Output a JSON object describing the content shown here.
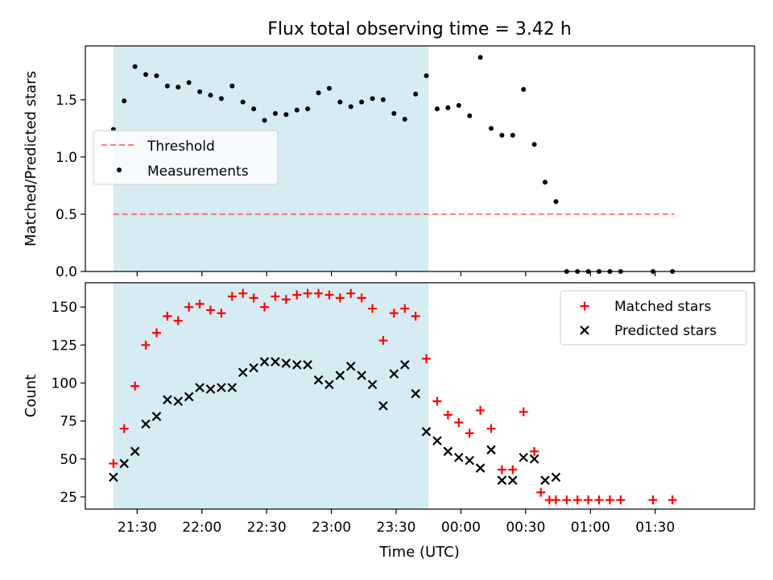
{
  "title": "Flux total observing time = 3.42 h",
  "xlabel": "Time (UTC)",
  "x_tick_labels": [
    "21:30",
    "22:00",
    "22:30",
    "23:00",
    "23:30",
    "00:00",
    "00:30",
    "01:00",
    "01:30"
  ],
  "colors": {
    "shade": "#add8e6",
    "threshold": "#ff0000",
    "matched": "#ff0000",
    "predicted": "#000000",
    "measurements": "#000000"
  },
  "chart_data": [
    {
      "type": "scatter",
      "panel": "top",
      "ylabel": "Matched/Predicted stars",
      "ylim": [
        0,
        1.97
      ],
      "y_ticks": [
        0.0,
        0.5,
        1.0,
        1.5
      ],
      "y_tick_labels": [
        "0.0",
        "0.5",
        "1.0",
        "1.5"
      ],
      "xlim_minutes_from_2130": [
        -24,
        286
      ],
      "shaded_interval": [
        "21:19",
        "23:45"
      ],
      "threshold": {
        "name": "Threshold",
        "value": 0.5,
        "x_start": "21:19",
        "x_end": "01:39",
        "style": "dashed"
      },
      "legend": {
        "position": "center-left",
        "entries": [
          "Threshold",
          "Measurements"
        ]
      },
      "series": [
        {
          "name": "Measurements",
          "marker": "dot",
          "x": [
            "21:19",
            "21:24",
            "21:29",
            "21:34",
            "21:39",
            "21:44",
            "21:49",
            "21:54",
            "21:59",
            "22:04",
            "22:09",
            "22:14",
            "22:19",
            "22:24",
            "22:29",
            "22:34",
            "22:39",
            "22:44",
            "22:49",
            "22:54",
            "22:59",
            "23:04",
            "23:09",
            "23:14",
            "23:19",
            "23:24",
            "23:29",
            "23:34",
            "23:39",
            "23:44",
            "23:49",
            "23:54",
            "23:59",
            "00:04",
            "00:09",
            "00:14",
            "00:19",
            "00:24",
            "00:29",
            "00:34",
            "00:39",
            "00:44",
            "00:49",
            "00:54",
            "00:59",
            "01:04",
            "01:09",
            "01:14",
            "01:29",
            "01:38"
          ],
          "y": [
            1.24,
            1.49,
            1.79,
            1.72,
            1.71,
            1.62,
            1.61,
            1.65,
            1.57,
            1.54,
            1.51,
            1.62,
            1.48,
            1.42,
            1.32,
            1.38,
            1.37,
            1.41,
            1.42,
            1.56,
            1.6,
            1.48,
            1.44,
            1.48,
            1.51,
            1.5,
            1.38,
            1.33,
            1.55,
            1.71,
            1.42,
            1.43,
            1.45,
            1.36,
            1.87,
            1.25,
            1.19,
            1.19,
            1.59,
            1.11,
            0.78,
            0.61,
            0,
            0,
            0,
            0,
            0,
            0,
            0,
            0
          ]
        }
      ]
    },
    {
      "type": "scatter",
      "panel": "bottom",
      "ylabel": "Count",
      "ylim": [
        17,
        166
      ],
      "y_ticks": [
        25,
        50,
        75,
        100,
        125,
        150
      ],
      "y_tick_labels": [
        "25",
        "50",
        "75",
        "100",
        "125",
        "150"
      ],
      "xlim_minutes_from_2130": [
        -24,
        286
      ],
      "shaded_interval": [
        "21:19",
        "23:45"
      ],
      "legend": {
        "position": "top-right",
        "entries": [
          "Matched stars",
          "Predicted stars"
        ]
      },
      "series": [
        {
          "name": "Matched stars",
          "marker": "plus",
          "x": [
            "21:19",
            "21:24",
            "21:29",
            "21:34",
            "21:39",
            "21:44",
            "21:49",
            "21:54",
            "21:59",
            "22:04",
            "22:09",
            "22:14",
            "22:19",
            "22:24",
            "22:29",
            "22:34",
            "22:39",
            "22:44",
            "22:49",
            "22:54",
            "22:59",
            "23:04",
            "23:09",
            "23:14",
            "23:19",
            "23:24",
            "23:29",
            "23:34",
            "23:39",
            "23:44",
            "23:49",
            "23:54",
            "23:59",
            "00:04",
            "00:09",
            "00:14",
            "00:19",
            "00:24",
            "00:29",
            "00:34",
            "00:37",
            "00:41",
            "00:44",
            "00:49",
            "00:54",
            "00:59",
            "01:04",
            "01:09",
            "01:14",
            "01:29",
            "01:38"
          ],
          "y": [
            47,
            70,
            98,
            125,
            133,
            144,
            141,
            150,
            152,
            148,
            146,
            157,
            159,
            156,
            150,
            157,
            155,
            158,
            159,
            159,
            158,
            156,
            159,
            156,
            149,
            128,
            146,
            149,
            144,
            116,
            88,
            79,
            74,
            67,
            82,
            70,
            43,
            43,
            81,
            55,
            28,
            23,
            23,
            23,
            23,
            23,
            23,
            23,
            23,
            23,
            23
          ]
        },
        {
          "name": "Predicted stars",
          "marker": "x",
          "x": [
            "21:19",
            "21:24",
            "21:29",
            "21:34",
            "21:39",
            "21:44",
            "21:49",
            "21:54",
            "21:59",
            "22:04",
            "22:09",
            "22:14",
            "22:19",
            "22:24",
            "22:29",
            "22:34",
            "22:39",
            "22:44",
            "22:49",
            "22:54",
            "22:59",
            "23:04",
            "23:09",
            "23:14",
            "23:19",
            "23:24",
            "23:29",
            "23:34",
            "23:39",
            "23:44",
            "23:49",
            "23:54",
            "23:59",
            "00:04",
            "00:09",
            "00:14",
            "00:19",
            "00:24",
            "00:29",
            "00:34",
            "00:39",
            "00:44"
          ],
          "y": [
            38,
            47,
            55,
            73,
            78,
            89,
            88,
            91,
            97,
            96,
            97,
            97,
            107,
            110,
            114,
            114,
            113,
            112,
            112,
            102,
            99,
            105,
            111,
            105,
            99,
            85,
            106,
            112,
            93,
            68,
            62,
            55,
            51,
            49,
            44,
            56,
            36,
            36,
            51,
            50,
            36,
            38
          ]
        }
      ]
    }
  ]
}
